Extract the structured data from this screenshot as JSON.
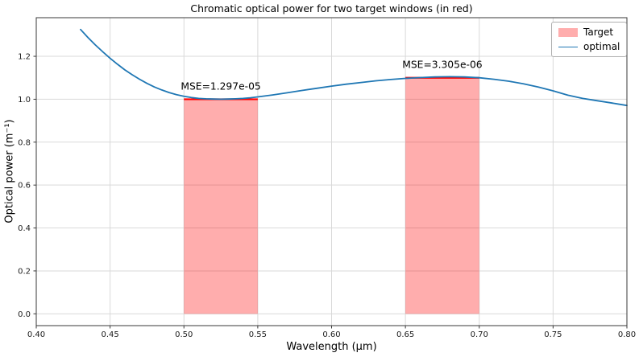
{
  "chart_data": {
    "type": "line",
    "title": "Chromatic optical power for two target windows (in red)",
    "xlabel": "Wavelength (μm)",
    "ylabel": "Optical power (m⁻¹)",
    "xlim": [
      0.4,
      0.8
    ],
    "ylim": [
      -0.055,
      1.38
    ],
    "grid": true,
    "xticks": [
      {
        "v": 0.4,
        "label": "0.40"
      },
      {
        "v": 0.45,
        "label": "0.45"
      },
      {
        "v": 0.5,
        "label": "0.50"
      },
      {
        "v": 0.55,
        "label": "0.55"
      },
      {
        "v": 0.6,
        "label": "0.60"
      },
      {
        "v": 0.65,
        "label": "0.65"
      },
      {
        "v": 0.7,
        "label": "0.70"
      },
      {
        "v": 0.75,
        "label": "0.75"
      },
      {
        "v": 0.8,
        "label": "0.80"
      }
    ],
    "yticks": [
      {
        "v": 0.0,
        "label": "0.0"
      },
      {
        "v": 0.2,
        "label": "0.2"
      },
      {
        "v": 0.4,
        "label": "0.4"
      },
      {
        "v": 0.6,
        "label": "0.6"
      },
      {
        "v": 0.8,
        "label": "0.8"
      },
      {
        "v": 1.0,
        "label": "1.0"
      },
      {
        "v": 1.2,
        "label": "1.2"
      }
    ],
    "series": [
      {
        "name": "optimal",
        "x": [
          0.43,
          0.435,
          0.44,
          0.445,
          0.45,
          0.455,
          0.46,
          0.465,
          0.47,
          0.475,
          0.48,
          0.485,
          0.49,
          0.495,
          0.5,
          0.505,
          0.51,
          0.515,
          0.52,
          0.525,
          0.53,
          0.535,
          0.54,
          0.545,
          0.55,
          0.56,
          0.57,
          0.58,
          0.59,
          0.6,
          0.61,
          0.62,
          0.63,
          0.64,
          0.65,
          0.66,
          0.67,
          0.68,
          0.69,
          0.7,
          0.71,
          0.72,
          0.73,
          0.74,
          0.75,
          0.76,
          0.77,
          0.78,
          0.79,
          0.8
        ],
        "y": [
          1.325,
          1.288,
          1.253,
          1.221,
          1.191,
          1.163,
          1.137,
          1.114,
          1.093,
          1.074,
          1.057,
          1.043,
          1.031,
          1.021,
          1.014,
          1.008,
          1.004,
          1.002,
          1.001,
          1.0,
          1.001,
          1.002,
          1.004,
          1.007,
          1.011,
          1.02,
          1.03,
          1.041,
          1.051,
          1.061,
          1.07,
          1.078,
          1.086,
          1.092,
          1.097,
          1.101,
          1.104,
          1.105,
          1.104,
          1.1,
          1.093,
          1.084,
          1.072,
          1.057,
          1.039,
          1.019,
          1.004,
          0.993,
          0.982,
          0.971
        ]
      }
    ],
    "target_windows": [
      {
        "x_start": 0.5,
        "x_end": 0.55,
        "power": 1.0,
        "annotation": "MSE=1.297e-05"
      },
      {
        "x_start": 0.65,
        "x_end": 0.7,
        "power": 1.1,
        "annotation": "MSE=3.305e-06"
      }
    ],
    "legend": {
      "position": "upper right",
      "entries": [
        {
          "label": "Target",
          "type": "patch"
        },
        {
          "label": "optimal",
          "type": "line"
        }
      ]
    },
    "colors": {
      "optimal_line": "#1f77b4",
      "target_fill": "rgba(255,0,0,0.32)",
      "target_edge": "#ff0000",
      "grid": "#d9d9d9",
      "spine": "#3a3a3a",
      "tick_text": "#1a1a1a"
    }
  }
}
